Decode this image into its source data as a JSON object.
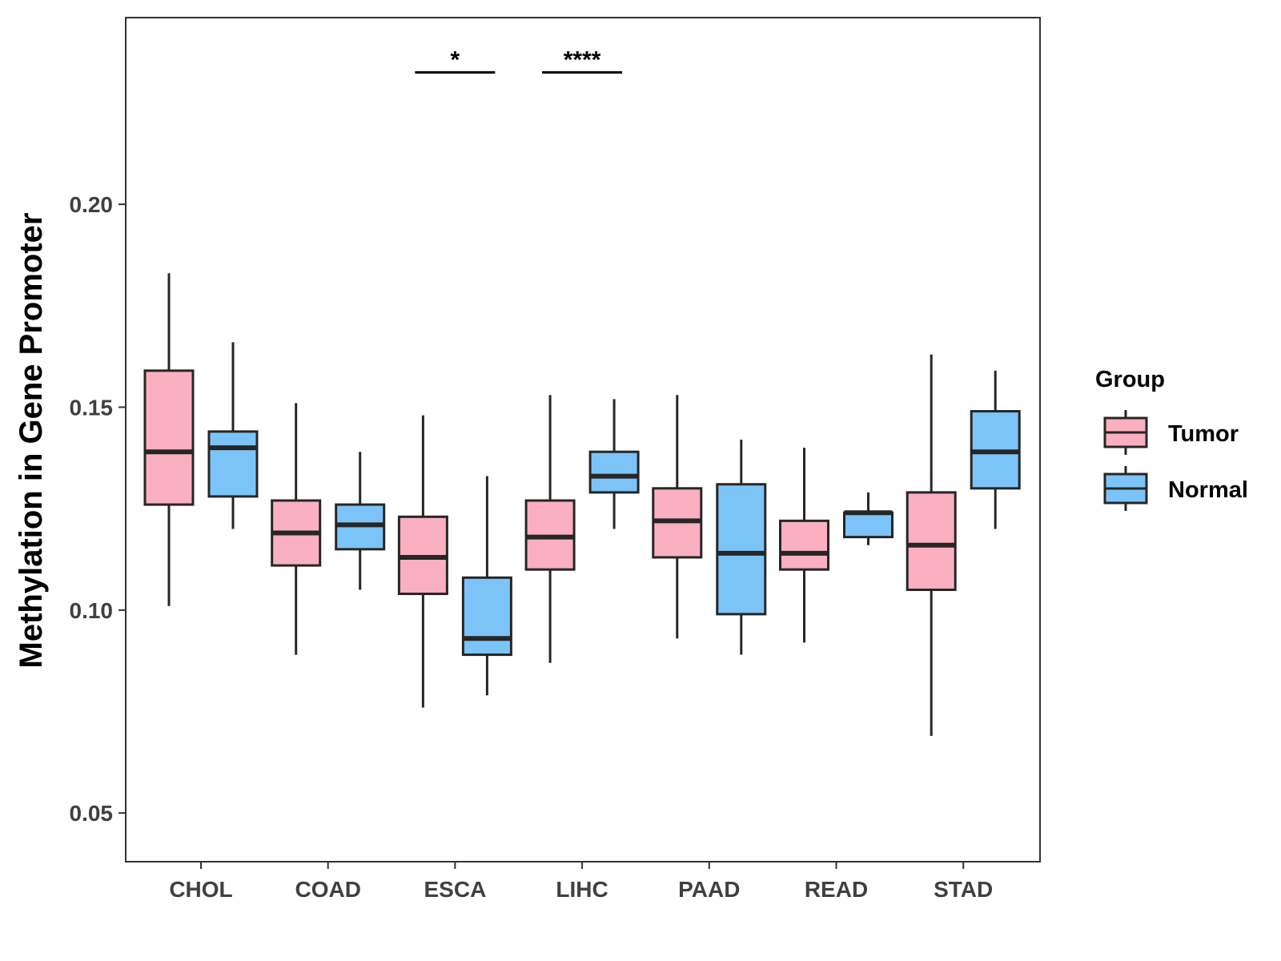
{
  "chart_data": {
    "type": "boxplot",
    "title": "",
    "xlabel": "",
    "ylabel": "Methylation in Gene Promoter",
    "ylim": [
      0.038,
      0.246
    ],
    "yticks": [
      0.05,
      0.1,
      0.15,
      0.2
    ],
    "ytick_labels": [
      "0.05",
      "0.10",
      "0.15",
      "0.20"
    ],
    "categories": [
      "CHOL",
      "COAD",
      "ESCA",
      "LIHC",
      "PAAD",
      "READ",
      "STAD"
    ],
    "legend": {
      "title": "Group",
      "position": "right",
      "entries": [
        {
          "name": "Tumor",
          "color": "#fbb0c1"
        },
        {
          "name": "Normal",
          "color": "#7cc4f8"
        }
      ]
    },
    "series": [
      {
        "name": "Tumor",
        "color": "#fbb0c1",
        "boxes": [
          {
            "category": "CHOL",
            "min": 0.101,
            "q1": 0.126,
            "median": 0.139,
            "q3": 0.159,
            "max": 0.183
          },
          {
            "category": "COAD",
            "min": 0.089,
            "q1": 0.111,
            "median": 0.119,
            "q3": 0.127,
            "max": 0.151
          },
          {
            "category": "ESCA",
            "min": 0.076,
            "q1": 0.104,
            "median": 0.113,
            "q3": 0.123,
            "max": 0.148
          },
          {
            "category": "LIHC",
            "min": 0.087,
            "q1": 0.11,
            "median": 0.118,
            "q3": 0.127,
            "max": 0.153
          },
          {
            "category": "PAAD",
            "min": 0.093,
            "q1": 0.113,
            "median": 0.122,
            "q3": 0.13,
            "max": 0.153
          },
          {
            "category": "READ",
            "min": 0.092,
            "q1": 0.11,
            "median": 0.114,
            "q3": 0.122,
            "max": 0.14
          },
          {
            "category": "STAD",
            "min": 0.069,
            "q1": 0.105,
            "median": 0.116,
            "q3": 0.129,
            "max": 0.163
          }
        ]
      },
      {
        "name": "Normal",
        "color": "#7cc4f8",
        "boxes": [
          {
            "category": "CHOL",
            "min": 0.12,
            "q1": 0.128,
            "median": 0.14,
            "q3": 0.144,
            "max": 0.166
          },
          {
            "category": "COAD",
            "min": 0.105,
            "q1": 0.115,
            "median": 0.121,
            "q3": 0.126,
            "max": 0.139
          },
          {
            "category": "ESCA",
            "min": 0.079,
            "q1": 0.089,
            "median": 0.093,
            "q3": 0.108,
            "max": 0.133
          },
          {
            "category": "LIHC",
            "min": 0.12,
            "q1": 0.129,
            "median": 0.133,
            "q3": 0.139,
            "max": 0.152
          },
          {
            "category": "PAAD",
            "min": 0.089,
            "q1": 0.099,
            "median": 0.114,
            "q3": 0.131,
            "max": 0.142
          },
          {
            "category": "READ",
            "min": 0.116,
            "q1": 0.118,
            "median": 0.124,
            "q3": 0.124,
            "max": 0.129
          },
          {
            "category": "STAD",
            "min": 0.12,
            "q1": 0.13,
            "median": 0.139,
            "q3": 0.149,
            "max": 0.159
          }
        ]
      }
    ],
    "annotations": [
      {
        "category": "ESCA",
        "label": "*",
        "y": 0.2325
      },
      {
        "category": "LIHC",
        "label": "****",
        "y": 0.2325
      }
    ],
    "grid": false
  }
}
